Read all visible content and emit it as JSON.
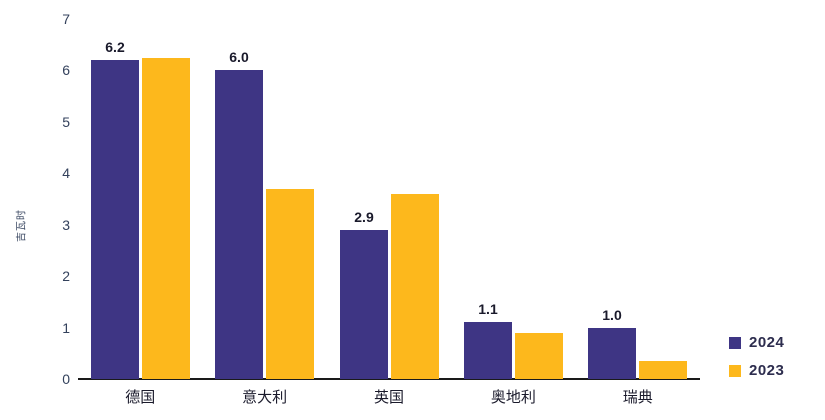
{
  "chart_data": {
    "type": "bar",
    "title": "",
    "xlabel": "",
    "ylabel": "吉瓦时",
    "categories": [
      "德国",
      "意大利",
      "英国",
      "奥地利",
      "瑞典"
    ],
    "series": [
      {
        "name": "2024",
        "color": "#3e3584",
        "values": [
          6.2,
          6.0,
          2.9,
          1.1,
          1.0
        ],
        "data_labels": [
          "6.2",
          "6.0",
          "2.9",
          "1.1",
          "1.0"
        ]
      },
      {
        "name": "2023",
        "color": "#fdb81c",
        "values": [
          6.25,
          3.7,
          3.6,
          0.9,
          0.35
        ],
        "data_labels": [
          null,
          null,
          null,
          null,
          null
        ]
      }
    ],
    "y_ticks": [
      "0",
      "1",
      "2",
      "3",
      "4",
      "5",
      "6",
      "7"
    ],
    "ylim": [
      0,
      7
    ],
    "grid": false,
    "legend_position": "bottom-right"
  },
  "colors": {
    "background": "#ffffff",
    "axis_line": "#1a1a1a",
    "tick_label": "#33415c",
    "category_label": "#1a1a2b",
    "data_label": "#1a1a2b",
    "legend_text": "#2d2d4e"
  }
}
